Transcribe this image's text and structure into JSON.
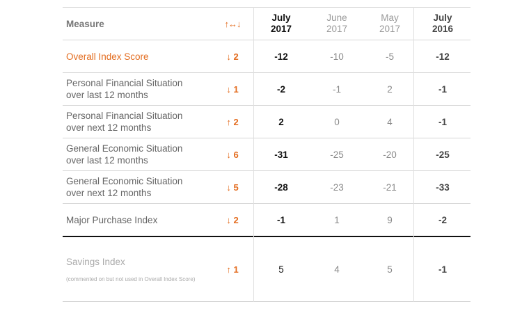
{
  "header": {
    "measure": "Measure",
    "change_arrows": "↑↔↓",
    "cols": [
      {
        "line1": "July",
        "line2": "2017"
      },
      {
        "line1": "June",
        "line2": "2017"
      },
      {
        "line1": "May",
        "line2": "2017"
      },
      {
        "line1": "July",
        "line2": "2016"
      }
    ]
  },
  "rows": [
    {
      "line1": "Overall Index Score",
      "line2": "",
      "change": "↓ 2",
      "july2017": "-12",
      "june2017": "-10",
      "may2017": "-5",
      "july2016": "-12"
    },
    {
      "line1": "Personal Financial Situation",
      "line2": "over last 12 months",
      "change": "↓ 1",
      "july2017": "-2",
      "june2017": "-1",
      "may2017": "2",
      "july2016": "-1"
    },
    {
      "line1": "Personal Financial Situation",
      "line2": "over next 12 months",
      "change": "↑ 2",
      "july2017": "2",
      "june2017": "0",
      "may2017": "4",
      "july2016": "-1"
    },
    {
      "line1": "General Economic Situation",
      "line2": "over last 12 months",
      "change": "↓ 6",
      "july2017": "-31",
      "june2017": "-25",
      "may2017": "-20",
      "july2016": "-25"
    },
    {
      "line1": "General Economic Situation",
      "line2": "over next 12 months",
      "change": "↓ 5",
      "july2017": "-28",
      "june2017": "-23",
      "may2017": "-21",
      "july2016": "-33"
    },
    {
      "line1": "Major Purchase Index",
      "line2": "",
      "change": "↓ 2",
      "july2017": "-1",
      "june2017": "1",
      "may2017": "9",
      "july2016": "-2"
    },
    {
      "line1": "Savings Index",
      "line2": "",
      "note": "(commented on but not used in Overall Index Score)",
      "change": "↑ 1",
      "july2017": "5",
      "june2017": "4",
      "may2017": "5",
      "july2016": "-1"
    }
  ],
  "colors": {
    "accent": "#e36c1f",
    "rule": "#d6d6d6",
    "strong_rule": "#111111"
  }
}
